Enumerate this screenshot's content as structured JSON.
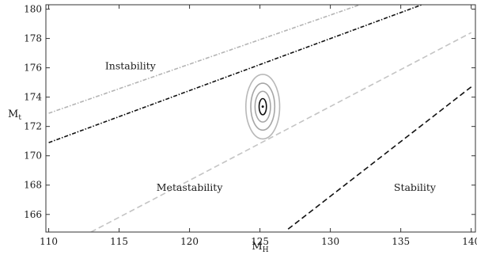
{
  "chart_data": {
    "type": "line",
    "title": "",
    "xlabel": "M",
    "xlabel_sub": "H",
    "ylabel": "M",
    "ylabel_sub": "t",
    "xlim": [
      109.8,
      140.3
    ],
    "ylim": [
      164.8,
      180.3
    ],
    "xticks": [
      110,
      115,
      120,
      125,
      130,
      135,
      140
    ],
    "yticks": [
      166,
      168,
      170,
      172,
      174,
      176,
      178,
      180
    ],
    "grid": false,
    "series": [
      {
        "style": "dash-dot",
        "color": "#b4b4b4",
        "points": [
          [
            110,
            172.9
          ],
          [
            132.1,
            180.3
          ]
        ]
      },
      {
        "style": "dash-dot",
        "color": "#111111",
        "points": [
          [
            110,
            170.9
          ],
          [
            136.5,
            180.3
          ]
        ]
      },
      {
        "style": "dashed",
        "color": "#c4c4c4",
        "points": [
          [
            113,
            164.8
          ],
          [
            140,
            178.4
          ]
        ]
      },
      {
        "style": "dashed",
        "color": "#111111",
        "points": [
          [
            127,
            165.0
          ],
          [
            140,
            174.7
          ]
        ]
      }
    ],
    "measurement": {
      "x": 125.2,
      "y": 173.35,
      "ellipses": [
        {
          "rx": 0.26,
          "ry": 0.55,
          "color": "#111111"
        },
        {
          "rx": 0.55,
          "ry": 1.05,
          "color": "#a6a6a6"
        },
        {
          "rx": 0.85,
          "ry": 1.6,
          "color": "#a6a6a6"
        },
        {
          "rx": 1.2,
          "ry": 2.2,
          "color": "#b8b8b8"
        }
      ]
    },
    "annotations": [
      {
        "text": "Instability",
        "x": 115.8,
        "y": 175.9
      },
      {
        "text": "Metastability",
        "x": 120.0,
        "y": 167.6
      },
      {
        "text": "Stability",
        "x": 136.0,
        "y": 167.6
      }
    ]
  }
}
